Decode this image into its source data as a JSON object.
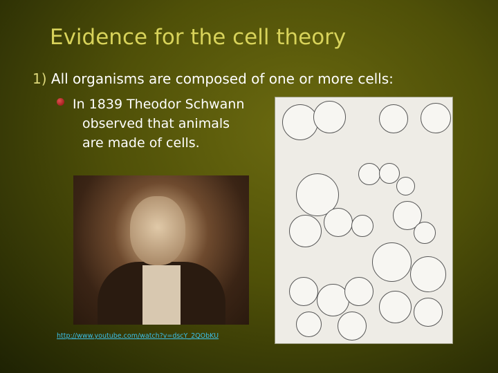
{
  "slide": {
    "title": "Evidence for the cell theory",
    "point": {
      "number": "1)",
      "text": "All organisms are composed of one or more cells:"
    },
    "subpoint_lines": [
      "In 1839 Theodor Schwann",
      "observed that animals",
      "are made of cells."
    ],
    "link": "http://www.youtube.com/watch?v=dscY_2QObKU",
    "images": {
      "portrait": "Portrait of Theodor Schwann",
      "drawing": "Schwann's drawings of animal cells"
    },
    "colors": {
      "title": "#d8d35a",
      "text": "#ffffff",
      "bullet": "#c02020",
      "link": "#3cc0e8"
    }
  }
}
